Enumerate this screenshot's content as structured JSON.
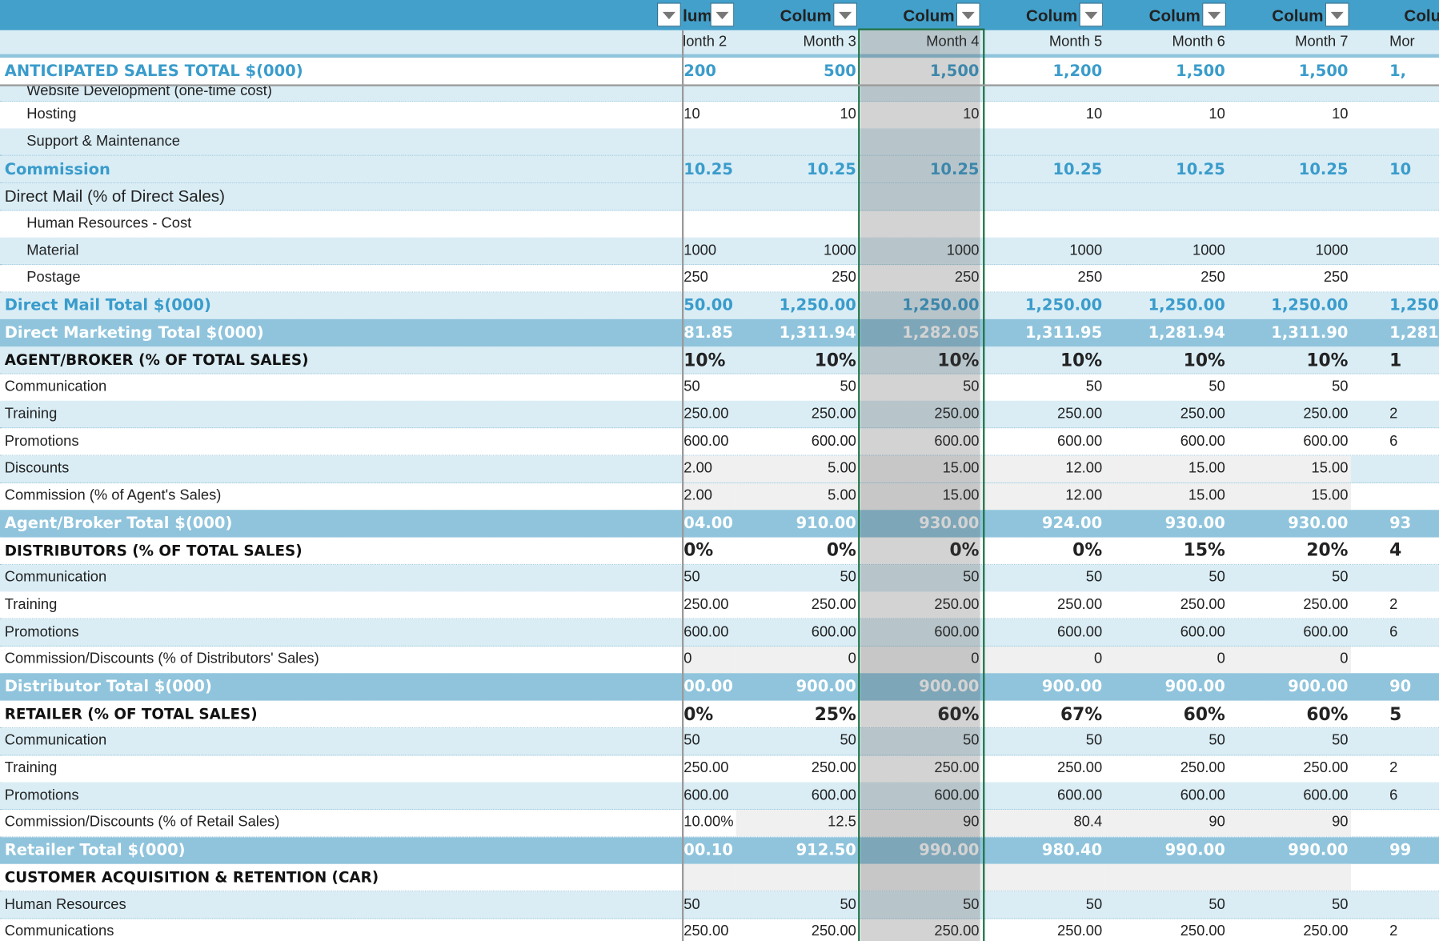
{
  "header": {
    "columns": [
      "lum",
      "Colum",
      "Colum",
      "Colum",
      "Colum",
      "Colum",
      "Colu"
    ],
    "months": [
      "lonth 2",
      "Month 3",
      "Month 4",
      "Month 5",
      "Month 6",
      "Month 7",
      "Mor"
    ]
  },
  "selected_column": "Month 4",
  "colors": {
    "header": "#42a0cb",
    "band": "#8fc4dc",
    "light_row": "#daedf5",
    "accent_text": "#3a9ccb",
    "selection_border": "#217346"
  },
  "rows": [
    {
      "label": "ANTICIPATED SALES TOTAL $(000)",
      "type": "blue",
      "bg": "W",
      "values": [
        "200",
        "500",
        "1,500",
        "1,200",
        "1,500",
        "1,500",
        "1,"
      ]
    },
    {
      "label": "Website Development (one-time cost)",
      "type": "item",
      "bg": "L",
      "indent": true,
      "short": true,
      "values": [
        "",
        "",
        "",
        "",
        "",
        "",
        ""
      ]
    },
    {
      "label": "Hosting",
      "type": "item",
      "bg": "W",
      "indent": true,
      "values": [
        "10",
        "10",
        "10",
        "10",
        "10",
        "10",
        ""
      ]
    },
    {
      "label": "Support & Maintenance",
      "type": "item",
      "bg": "L",
      "indent": true,
      "values": [
        "",
        "",
        "",
        "",
        "",
        "",
        ""
      ]
    },
    {
      "label": "Commission",
      "type": "blue",
      "bg": "L",
      "values": [
        "10.25",
        "10.25",
        "10.25",
        "10.25",
        "10.25",
        "10.25",
        "10"
      ]
    },
    {
      "label": "Direct Mail (% of Direct Sales)",
      "type": "item",
      "bg": "L",
      "big": true,
      "values": [
        "",
        "",
        "",
        "",
        "",
        "",
        ""
      ]
    },
    {
      "label": "Human Resources - Cost",
      "type": "item",
      "bg": "W",
      "indent": true,
      "values": [
        "",
        "",
        "",
        "",
        "",
        "",
        ""
      ]
    },
    {
      "label": "Material",
      "type": "item",
      "bg": "L",
      "indent": true,
      "values": [
        "1000",
        "1000",
        "1000",
        "1000",
        "1000",
        "1000",
        ""
      ]
    },
    {
      "label": "Postage",
      "type": "item",
      "bg": "W",
      "indent": true,
      "values": [
        "250",
        "250",
        "250",
        "250",
        "250",
        "250",
        ""
      ]
    },
    {
      "label": "Direct Mail Total $(000)",
      "type": "blue",
      "bg": "L",
      "values": [
        "50.00",
        "1,250.00",
        "1,250.00",
        "1,250.00",
        "1,250.00",
        "1,250.00",
        "1,250"
      ]
    },
    {
      "label": "Direct Marketing Total $(000)",
      "type": "band",
      "values": [
        "81.85",
        "1,311.94",
        "1,282.05",
        "1,311.95",
        "1,281.94",
        "1,311.90",
        "1,281"
      ]
    },
    {
      "label": "AGENT/BROKER (% OF TOTAL SALES)",
      "type": "head",
      "bg": "L",
      "values": [
        "10%",
        "10%",
        "10%",
        "10%",
        "10%",
        "10%",
        "1"
      ]
    },
    {
      "label": "Communication",
      "type": "item",
      "bg": "W",
      "values": [
        "50",
        "50",
        "50",
        "50",
        "50",
        "50",
        ""
      ]
    },
    {
      "label": "Training",
      "type": "item",
      "bg": "L",
      "values": [
        "250.00",
        "250.00",
        "250.00",
        "250.00",
        "250.00",
        "250.00",
        "2"
      ]
    },
    {
      "label": "Promotions",
      "type": "item",
      "bg": "W",
      "values": [
        "600.00",
        "600.00",
        "600.00",
        "600.00",
        "600.00",
        "600.00",
        "6"
      ]
    },
    {
      "label": "Discounts",
      "type": "item",
      "bg": "L",
      "gray": true,
      "values": [
        "2.00",
        "5.00",
        "15.00",
        "12.00",
        "15.00",
        "15.00",
        ""
      ]
    },
    {
      "label": "Commission (% of Agent's Sales)",
      "type": "item",
      "bg": "W",
      "gray": true,
      "values": [
        "2.00",
        "5.00",
        "15.00",
        "12.00",
        "15.00",
        "15.00",
        ""
      ]
    },
    {
      "label": "Agent/Broker Total $(000)",
      "type": "band",
      "values": [
        "04.00",
        "910.00",
        "930.00",
        "924.00",
        "930.00",
        "930.00",
        "93"
      ]
    },
    {
      "label": "DISTRIBUTORS (% OF TOTAL SALES)",
      "type": "head",
      "bg": "W",
      "values": [
        "0%",
        "0%",
        "0%",
        "0%",
        "15%",
        "20%",
        "4"
      ]
    },
    {
      "label": "Communication",
      "type": "item",
      "bg": "L",
      "values": [
        "50",
        "50",
        "50",
        "50",
        "50",
        "50",
        ""
      ]
    },
    {
      "label": "Training",
      "type": "item",
      "bg": "W",
      "values": [
        "250.00",
        "250.00",
        "250.00",
        "250.00",
        "250.00",
        "250.00",
        "2"
      ]
    },
    {
      "label": "Promotions",
      "type": "item",
      "bg": "L",
      "values": [
        "600.00",
        "600.00",
        "600.00",
        "600.00",
        "600.00",
        "600.00",
        "6"
      ]
    },
    {
      "label": "Commission/Discounts (% of Distributors' Sales)",
      "type": "item",
      "bg": "W",
      "gray": true,
      "values": [
        "0",
        "0",
        "0",
        "0",
        "0",
        "0",
        ""
      ]
    },
    {
      "label": "Distributor Total $(000)",
      "type": "band",
      "values": [
        "00.00",
        "900.00",
        "900.00",
        "900.00",
        "900.00",
        "900.00",
        "90"
      ]
    },
    {
      "label": "RETAILER (% OF TOTAL SALES)",
      "type": "head",
      "bg": "W",
      "values": [
        "0%",
        "25%",
        "60%",
        "67%",
        "60%",
        "60%",
        "5"
      ]
    },
    {
      "label": "Communication",
      "type": "item",
      "bg": "L",
      "values": [
        "50",
        "50",
        "50",
        "50",
        "50",
        "50",
        ""
      ]
    },
    {
      "label": "Training",
      "type": "item",
      "bg": "W",
      "values": [
        "250.00",
        "250.00",
        "250.00",
        "250.00",
        "250.00",
        "250.00",
        "2"
      ]
    },
    {
      "label": "Promotions",
      "type": "item",
      "bg": "L",
      "values": [
        "600.00",
        "600.00",
        "600.00",
        "600.00",
        "600.00",
        "600.00",
        "6"
      ]
    },
    {
      "label": "Commission/Discounts (% of Retail Sales)",
      "type": "item",
      "bg": "W",
      "gray": true,
      "nogray_first": true,
      "values": [
        "10.00%",
        "12.5",
        "90",
        "80.4",
        "90",
        "90",
        ""
      ]
    },
    {
      "label": "Retailer Total $(000)",
      "type": "band",
      "values": [
        "00.10",
        "912.50",
        "990.00",
        "980.40",
        "990.00",
        "990.00",
        "99"
      ]
    },
    {
      "label": "CUSTOMER ACQUISITION & RETENTION (CAR)",
      "type": "head",
      "bg": "W",
      "gray": true,
      "values": [
        "",
        "",
        "",
        "",
        "",
        "",
        ""
      ]
    },
    {
      "label": "Human Resources",
      "type": "item",
      "bg": "L",
      "values": [
        "50",
        "50",
        "50",
        "50",
        "50",
        "50",
        ""
      ]
    },
    {
      "label": "Communications",
      "type": "item",
      "bg": "W",
      "values": [
        "250.00",
        "250.00",
        "250.00",
        "250.00",
        "250.00",
        "250.00",
        "2"
      ]
    }
  ]
}
